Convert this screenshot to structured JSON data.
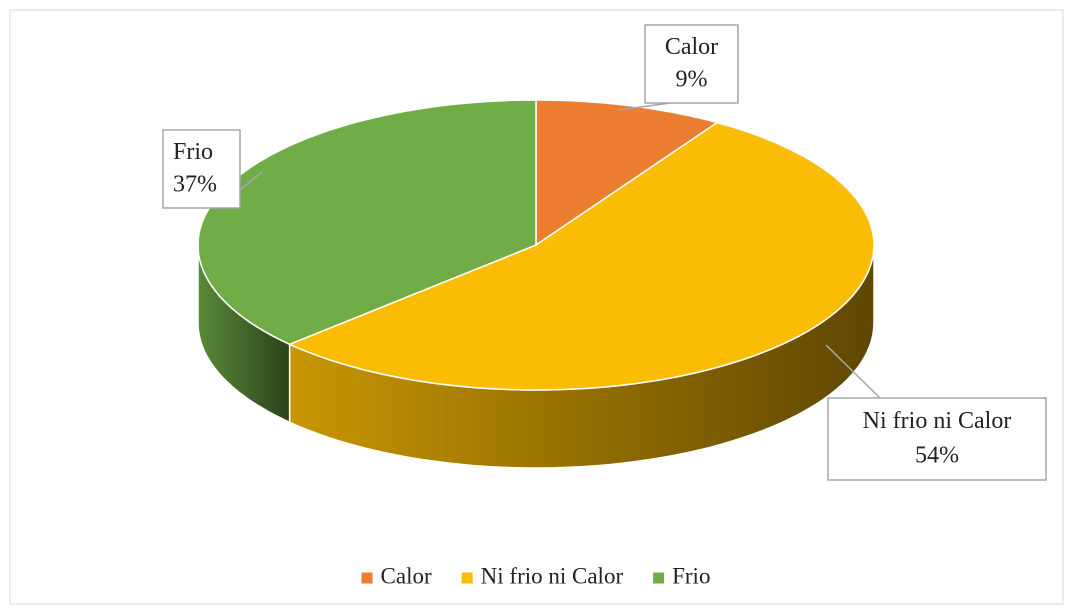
{
  "chart_data": {
    "type": "pie",
    "style": "3d",
    "categories": [
      "Calor",
      "Ni frio ni Calor",
      "Frio"
    ],
    "values": [
      9,
      54,
      37
    ],
    "value_labels": [
      "9%",
      "54%",
      "37%"
    ],
    "colors": [
      "#ed7d31",
      "#fbbc04",
      "#70ad47"
    ],
    "legend": "bottom"
  }
}
